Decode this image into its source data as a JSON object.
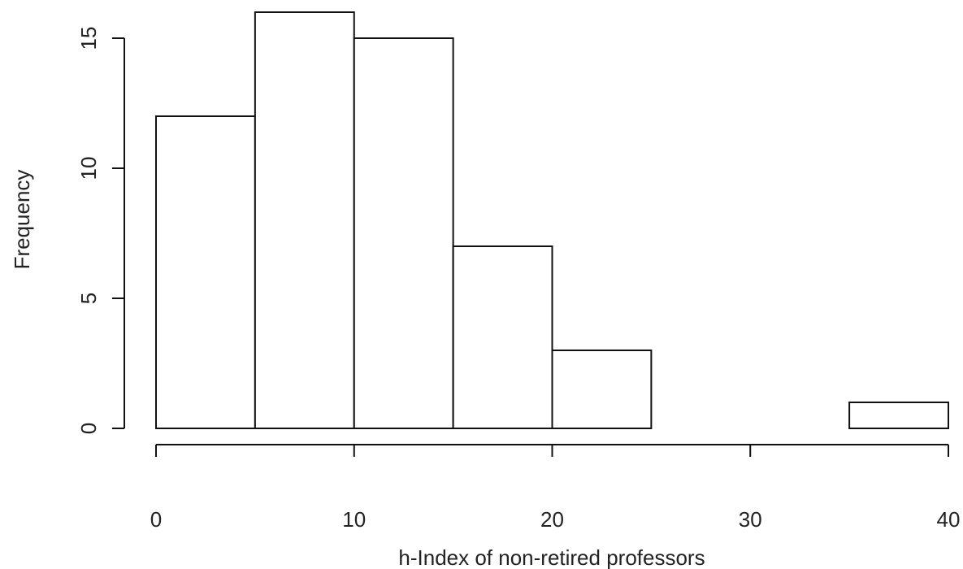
{
  "chart_data": {
    "type": "bar",
    "subtype": "histogram",
    "bins": [
      {
        "from": 0,
        "to": 5,
        "count": 12
      },
      {
        "from": 5,
        "to": 10,
        "count": 16
      },
      {
        "from": 10,
        "to": 15,
        "count": 15
      },
      {
        "from": 15,
        "to": 20,
        "count": 7
      },
      {
        "from": 20,
        "to": 25,
        "count": 3
      },
      {
        "from": 25,
        "to": 30,
        "count": 0
      },
      {
        "from": 30,
        "to": 35,
        "count": 0
      },
      {
        "from": 35,
        "to": 40,
        "count": 1
      }
    ],
    "xlabel": "h-Index of non-retired professors",
    "ylabel": "Frequency",
    "xlim": [
      0,
      40
    ],
    "ylim": [
      0,
      16
    ],
    "xticks": [
      0,
      10,
      20,
      30,
      40
    ],
    "yticks": [
      0,
      5,
      10,
      15
    ],
    "grid": false,
    "bar_fill": "#ffffff",
    "bar_stroke": "#111111"
  }
}
